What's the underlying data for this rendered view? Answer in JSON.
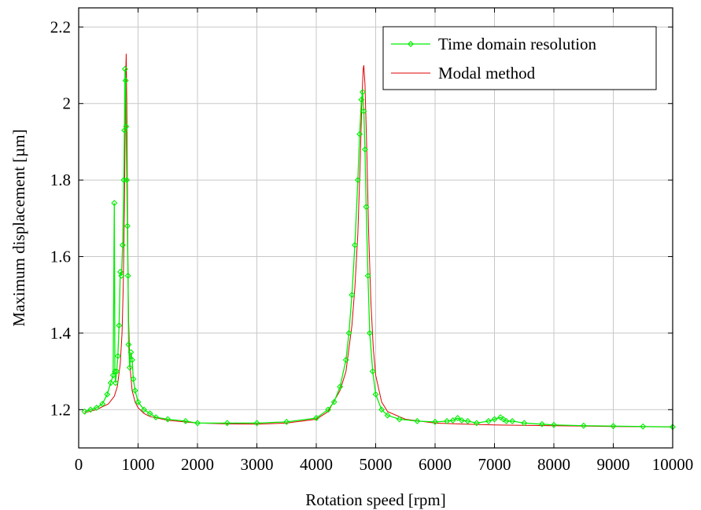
{
  "chart_data": {
    "type": "line",
    "title": "",
    "xlabel": "Rotation speed [rpm]",
    "ylabel": "Maximum displacement [µm]",
    "xlim": [
      0,
      10000
    ],
    "ylim": [
      1.1,
      2.25
    ],
    "xticks": [
      0,
      1000,
      2000,
      3000,
      4000,
      5000,
      6000,
      7000,
      8000,
      9000,
      10000
    ],
    "yticks": [
      1.2,
      1.4,
      1.6,
      1.8,
      2.0,
      2.2
    ],
    "ytick_labels": [
      "1.2",
      "1.4",
      "1.6",
      "1.8",
      "2",
      "2.2"
    ],
    "grid": true,
    "legend_position": "top-right",
    "series": [
      {
        "name": "Time domain resolution",
        "color": "#00ee00",
        "marker": "diamond-open",
        "x": [
          100,
          200,
          300,
          400,
          480,
          540,
          580,
          600,
          610,
          620,
          640,
          660,
          680,
          700,
          720,
          740,
          760,
          770,
          780,
          790,
          800,
          810,
          820,
          830,
          840,
          860,
          880,
          900,
          920,
          950,
          1000,
          1100,
          1200,
          1300,
          1500,
          1800,
          2000,
          2500,
          3000,
          3500,
          4000,
          4200,
          4300,
          4400,
          4500,
          4550,
          4600,
          4650,
          4700,
          4730,
          4760,
          4780,
          4800,
          4820,
          4840,
          4870,
          4900,
          4950,
          5000,
          5100,
          5200,
          5400,
          5700,
          6000,
          6200,
          6300,
          6380,
          6450,
          6550,
          6700,
          6900,
          7000,
          7100,
          7150,
          7200,
          7300,
          7500,
          7800,
          8000,
          8500,
          9000,
          9500,
          10000
        ],
        "y": [
          1.195,
          1.2,
          1.205,
          1.215,
          1.24,
          1.27,
          1.29,
          1.74,
          1.3,
          1.27,
          1.3,
          1.34,
          1.42,
          1.56,
          1.55,
          1.63,
          1.8,
          1.93,
          2.09,
          2.06,
          1.94,
          1.8,
          1.68,
          1.55,
          1.37,
          1.31,
          1.35,
          1.33,
          1.28,
          1.25,
          1.22,
          1.2,
          1.19,
          1.18,
          1.175,
          1.17,
          1.165,
          1.165,
          1.165,
          1.168,
          1.178,
          1.2,
          1.22,
          1.26,
          1.33,
          1.4,
          1.5,
          1.63,
          1.8,
          1.92,
          2.01,
          2.03,
          1.98,
          1.88,
          1.73,
          1.55,
          1.4,
          1.3,
          1.24,
          1.2,
          1.185,
          1.175,
          1.17,
          1.168,
          1.17,
          1.172,
          1.178,
          1.172,
          1.17,
          1.165,
          1.17,
          1.175,
          1.18,
          1.175,
          1.17,
          1.17,
          1.165,
          1.162,
          1.16,
          1.158,
          1.157,
          1.156,
          1.155
        ]
      },
      {
        "name": "Modal method",
        "color": "#e00000",
        "marker": "none",
        "x": [
          100,
          300,
          500,
          600,
          650,
          700,
          730,
          750,
          770,
          780,
          790,
          800,
          810,
          820,
          830,
          840,
          860,
          900,
          950,
          1000,
          1100,
          1200,
          1500,
          2000,
          2500,
          3000,
          3500,
          4000,
          4200,
          4400,
          4500,
          4600,
          4650,
          4700,
          4740,
          4770,
          4790,
          4800,
          4820,
          4850,
          4880,
          4920,
          4960,
          5000,
          5100,
          5200,
          5500,
          6000,
          6500,
          7000,
          8000,
          9000,
          10000
        ],
        "y": [
          1.192,
          1.2,
          1.215,
          1.235,
          1.26,
          1.32,
          1.4,
          1.52,
          1.72,
          1.9,
          2.06,
          2.13,
          2.0,
          1.78,
          1.58,
          1.44,
          1.32,
          1.25,
          1.22,
          1.205,
          1.19,
          1.182,
          1.172,
          1.165,
          1.163,
          1.162,
          1.165,
          1.175,
          1.195,
          1.25,
          1.3,
          1.42,
          1.52,
          1.66,
          1.85,
          2.02,
          2.09,
          2.1,
          2.05,
          1.88,
          1.67,
          1.48,
          1.36,
          1.29,
          1.22,
          1.195,
          1.175,
          1.165,
          1.162,
          1.16,
          1.158,
          1.156,
          1.155
        ]
      }
    ]
  }
}
